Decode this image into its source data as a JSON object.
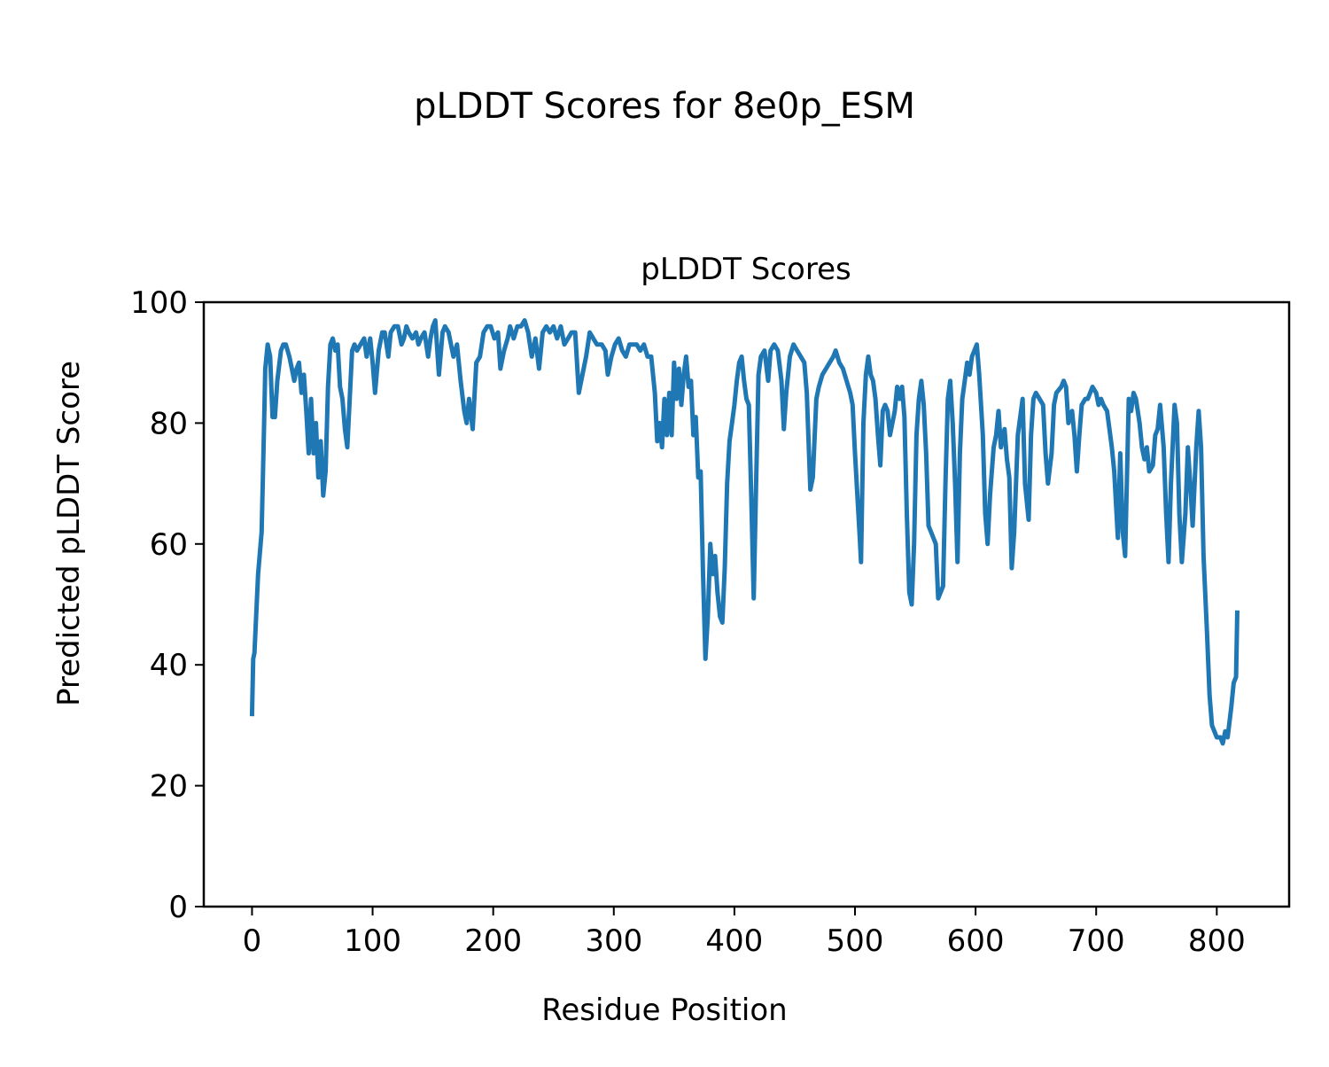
{
  "chart_data": {
    "type": "line",
    "suptitle": "pLDDT Scores for 8e0p_ESM",
    "title": "pLDDT Scores",
    "xlabel": "Residue Position",
    "ylabel": "Predicted pLDDT Score",
    "xlim": [
      -40,
      860
    ],
    "ylim": [
      0,
      100
    ],
    "xticks": [
      0,
      100,
      200,
      300,
      400,
      500,
      600,
      700,
      800
    ],
    "yticks": [
      0,
      20,
      40,
      60,
      80,
      100
    ],
    "grid": false,
    "series": [
      {
        "name": "pLDDT",
        "color": "#1f77b4",
        "x": [
          0,
          1,
          2,
          5,
          8,
          10,
          11,
          13,
          15,
          17,
          19,
          21,
          24,
          26,
          28,
          31,
          33,
          35,
          37,
          39,
          41,
          43,
          45,
          47,
          49,
          51,
          53,
          55,
          57,
          59,
          61,
          63,
          65,
          67,
          69,
          71,
          73,
          75,
          77,
          79,
          81,
          83,
          85,
          87,
          90,
          93,
          95,
          98,
          100,
          102,
          105,
          108,
          110,
          113,
          115,
          118,
          121,
          124,
          126,
          128,
          130,
          133,
          136,
          138,
          140,
          143,
          146,
          148,
          150,
          152,
          155,
          158,
          160,
          163,
          165,
          167,
          170,
          173,
          176,
          178,
          180,
          183,
          186,
          189,
          192,
          195,
          198,
          201,
          204,
          206,
          209,
          212,
          214,
          217,
          220,
          223,
          226,
          229,
          232,
          235,
          238,
          241,
          244,
          247,
          250,
          253,
          256,
          259,
          262,
          265,
          268,
          271,
          274,
          277,
          280,
          283,
          286,
          290,
          293,
          295,
          298,
          301,
          304,
          307,
          310,
          313,
          316,
          319,
          322,
          325,
          328,
          331,
          334,
          336,
          338,
          340,
          342,
          344,
          346,
          348,
          350,
          352,
          354,
          356,
          358,
          360,
          362,
          364,
          366,
          368,
          370,
          372,
          374,
          376,
          378,
          380,
          382,
          384,
          386,
          388,
          390,
          392,
          394,
          396,
          398,
          400,
          402,
          404,
          406,
          408,
          410,
          412,
          414,
          416,
          418,
          420,
          422,
          425,
          428,
          430,
          433,
          436,
          439,
          441,
          443,
          446,
          449,
          452,
          455,
          458,
          460,
          463,
          465,
          468,
          470,
          473,
          476,
          479,
          482,
          484,
          487,
          490,
          493,
          496,
          498,
          500,
          502,
          504,
          505,
          507,
          509,
          511,
          513,
          515,
          517,
          519,
          521,
          523,
          525,
          527,
          529,
          531,
          533,
          535,
          537,
          539,
          541,
          543,
          545,
          547,
          549,
          551,
          553,
          555,
          557,
          559,
          561,
          563,
          565,
          567,
          569,
          571,
          573,
          575,
          577,
          579,
          581,
          583,
          585,
          587,
          589,
          591,
          593,
          595,
          597,
          599,
          601,
          603,
          606,
          608,
          610,
          612,
          615,
          617,
          619,
          621,
          624,
          626,
          628,
          630,
          632,
          635,
          637,
          639,
          641,
          644,
          646,
          648,
          650,
          653,
          656,
          658,
          660,
          663,
          665,
          667,
          671,
          673,
          675,
          677,
          680,
          682,
          684,
          686,
          688,
          691,
          693,
          695,
          697,
          700,
          702,
          704,
          706,
          709,
          711,
          713,
          715,
          718,
          720,
          722,
          724,
          727,
          729,
          731,
          733,
          736,
          738,
          740,
          742,
          744,
          747,
          749,
          751,
          753,
          756,
          758,
          760,
          762,
          765,
          767,
          769,
          771,
          774,
          776,
          778,
          780,
          783,
          785,
          787,
          789,
          792,
          794,
          796,
          798,
          800,
          803,
          805,
          807,
          809,
          812,
          814,
          816,
          817
        ],
        "y": [
          31.5,
          41,
          42,
          55,
          62,
          80,
          89,
          93,
          91,
          81,
          81,
          87,
          92,
          93,
          93,
          91,
          89,
          87,
          89,
          90,
          85,
          88,
          82,
          75,
          84,
          75,
          80,
          71,
          77,
          68,
          72,
          86,
          93,
          94,
          92,
          93,
          86,
          84,
          79,
          76,
          84,
          92,
          93,
          92,
          93,
          94,
          91,
          94,
          90,
          85,
          92,
          95,
          95,
          91,
          95,
          96,
          96,
          93,
          94,
          96,
          95,
          94,
          95,
          93,
          94,
          95,
          91,
          94,
          96,
          97,
          88,
          95,
          96,
          95,
          93,
          91,
          93,
          87,
          82,
          80,
          84,
          79,
          90,
          91,
          95,
          96,
          96,
          94,
          95,
          89,
          92,
          94,
          96,
          94,
          96,
          96,
          97,
          95,
          91,
          94,
          89,
          95,
          96,
          95,
          96,
          94,
          96,
          93,
          94,
          95,
          95,
          85,
          88,
          91,
          95,
          94,
          93,
          93,
          92,
          88,
          91,
          93,
          94,
          92,
          91,
          93,
          93,
          93,
          92,
          93,
          91,
          91,
          85,
          77,
          80,
          76,
          84,
          78,
          85,
          78,
          90,
          84,
          89,
          83,
          88,
          91,
          86,
          87,
          78,
          81,
          71,
          72,
          55,
          41,
          48,
          60,
          55,
          58,
          52,
          48,
          47,
          56,
          70,
          77,
          80,
          83,
          87,
          90,
          91,
          87,
          84,
          83,
          68,
          51,
          70,
          88,
          91,
          92,
          87,
          92,
          93,
          92,
          87,
          79,
          85,
          91,
          93,
          92,
          91,
          90,
          85,
          69,
          71,
          84,
          86,
          88,
          89,
          90,
          91,
          92,
          90,
          89,
          87,
          85,
          83,
          75,
          68,
          61,
          57,
          80,
          88,
          91,
          88,
          87,
          84,
          78,
          73,
          82,
          83,
          82,
          78,
          80,
          82,
          86,
          84,
          86,
          81,
          65,
          52,
          50,
          60,
          78,
          84,
          87,
          83,
          75,
          63,
          62,
          61,
          60,
          51,
          52,
          53,
          70,
          84,
          87,
          80,
          70,
          57,
          75,
          84,
          87,
          90,
          88,
          91,
          92,
          93,
          88,
          78,
          65,
          60,
          68,
          76,
          78,
          82,
          76,
          79,
          74,
          71,
          56,
          62,
          78,
          81,
          84,
          70,
          64,
          78,
          84,
          85,
          84,
          83,
          75,
          70,
          75,
          83,
          85,
          86,
          87,
          86,
          80,
          82,
          78,
          72,
          78,
          83,
          84,
          84,
          85,
          86,
          85,
          83,
          84,
          83,
          82,
          79,
          76,
          72,
          61,
          75,
          62,
          58,
          84,
          82,
          85,
          84,
          80,
          76,
          74,
          76,
          72,
          73,
          78,
          79,
          83,
          76,
          65,
          57,
          70,
          83,
          80,
          65,
          57,
          65,
          76,
          70,
          63,
          76,
          82,
          76,
          58,
          45,
          35,
          30,
          29,
          28,
          28,
          27,
          29,
          28,
          33,
          37,
          38,
          49
        ]
      }
    ]
  }
}
